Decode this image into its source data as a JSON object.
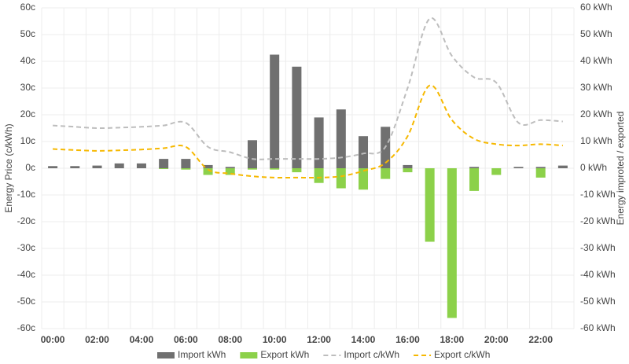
{
  "chart_data": {
    "type": "bar-line",
    "y_label": "Energy Price (c/kWh)",
    "y2_label": "Energy improted / exported",
    "categories": [
      "00:00",
      null,
      "02:00",
      null,
      "04:00",
      null,
      "06:00",
      null,
      "08:00",
      null,
      "10:00",
      null,
      "12:00",
      null,
      "14:00",
      null,
      "16:00",
      null,
      "18:00",
      null,
      "20:00",
      null,
      "22:00",
      null
    ],
    "ylim": [
      -60,
      60
    ],
    "yticks": [
      {
        "value": 60,
        "label": "60c"
      },
      {
        "value": 50,
        "label": "50c"
      },
      {
        "value": 40,
        "label": "40c"
      },
      {
        "value": 30,
        "label": "30c"
      },
      {
        "value": 20,
        "label": "20c"
      },
      {
        "value": 10,
        "label": "10c"
      },
      {
        "value": 0,
        "label": "0c"
      },
      {
        "value": -10,
        "label": "-10c"
      },
      {
        "value": -20,
        "label": "-20c"
      },
      {
        "value": -30,
        "label": "-30c"
      },
      {
        "value": -40,
        "label": "-40c"
      },
      {
        "value": -50,
        "label": "-50c"
      },
      {
        "value": -60,
        "label": "-60c"
      }
    ],
    "y2lim": [
      -60,
      60
    ],
    "y2ticks": [
      {
        "value": 60,
        "label": "60 kWh"
      },
      {
        "value": 50,
        "label": "50 kWh"
      },
      {
        "value": 40,
        "label": "40 kWh"
      },
      {
        "value": 30,
        "label": "30 kWh"
      },
      {
        "value": 20,
        "label": "20 kWh"
      },
      {
        "value": 10,
        "label": "10 kWh"
      },
      {
        "value": 0,
        "label": "0 kWh"
      },
      {
        "value": -10,
        "label": "-10 kWh"
      },
      {
        "value": -20,
        "label": "-20 kWh"
      },
      {
        "value": -30,
        "label": "-30 kWh"
      },
      {
        "value": -40,
        "label": "-40 kWh"
      },
      {
        "value": -50,
        "label": "-50 kWh"
      },
      {
        "value": -60,
        "label": "-60 kWh"
      }
    ],
    "grid": true,
    "legend": "bottom",
    "series": [
      {
        "name": "Import kWh",
        "kind": "bar",
        "axis": "y2",
        "color": "#707070",
        "values": [
          0.8,
          0.8,
          1,
          1.8,
          1.8,
          3.5,
          3.5,
          1.2,
          0.5,
          10.5,
          42.5,
          38,
          19,
          22,
          12,
          15.5,
          1.2,
          0,
          0,
          0.5,
          0,
          0.5,
          0.5,
          1
        ]
      },
      {
        "name": "Export kWh",
        "kind": "bar",
        "axis": "y2",
        "color": "#8cd14a",
        "values": [
          0,
          0,
          0,
          0,
          0,
          -0.3,
          -0.5,
          -2.5,
          -2.5,
          -0.5,
          -0.5,
          -1.5,
          -5.5,
          -7.5,
          -8,
          -4,
          -1.5,
          -27.5,
          -56,
          -8.5,
          -2.5,
          0,
          -3.5,
          0
        ]
      },
      {
        "name": "Import c/kWh",
        "kind": "line",
        "color": "#bdbdbd",
        "values": [
          16,
          15.5,
          15,
          15.2,
          15.5,
          16,
          17,
          8,
          6,
          3.5,
          3.5,
          3.5,
          3.5,
          4,
          5.5,
          8,
          30,
          56,
          42,
          34,
          32,
          17,
          18,
          17.5
        ]
      },
      {
        "name": "Export c/kWh",
        "kind": "line",
        "color": "#f6b800",
        "values": [
          7.2,
          6.8,
          6.5,
          6.7,
          7,
          7.5,
          8,
          -0.5,
          -2,
          -3,
          -3.5,
          -3.5,
          -3.5,
          -3,
          -1,
          2,
          12,
          31,
          18,
          11,
          9,
          8.5,
          9,
          8.5
        ]
      }
    ]
  }
}
